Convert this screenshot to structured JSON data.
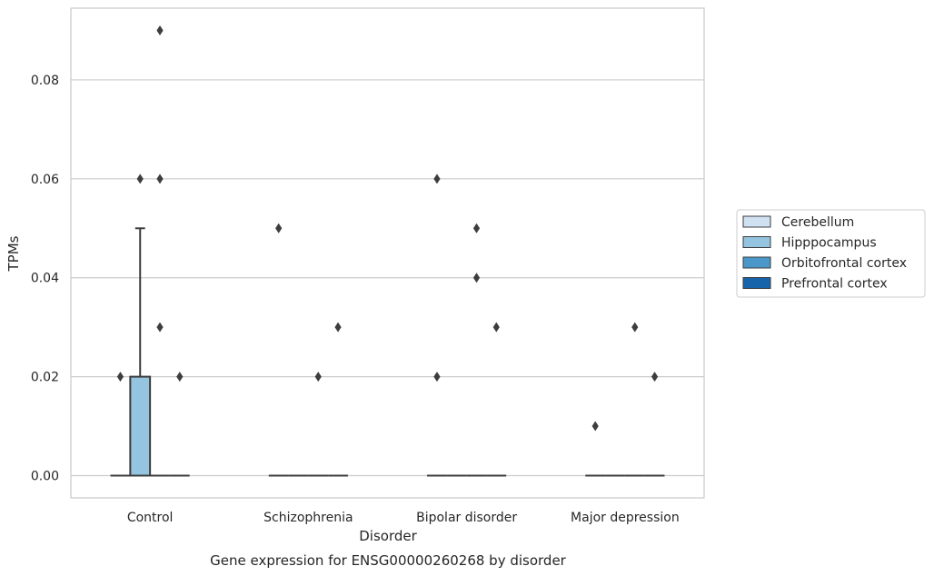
{
  "caption": "Gene expression for ENSG00000260268 by disorder",
  "chart_data": {
    "type": "box",
    "xlabel": "Disorder",
    "ylabel": "TPMs",
    "categories": [
      "Control",
      "Schizophrenia",
      "Bipolar disorder",
      "Major depression"
    ],
    "ylim": [
      -0.0045,
      0.0945
    ],
    "yticks": [
      "0.00",
      "0.02",
      "0.04",
      "0.06",
      "0.08"
    ],
    "ytick_values": [
      0,
      0.02,
      0.04,
      0.06,
      0.08
    ],
    "grid": true,
    "legend_position": "right-outside",
    "series": [
      {
        "name": "Cerebellum",
        "color": "#d0e1f2",
        "boxes": [
          {
            "q1": 0,
            "median": 0,
            "q3": 0,
            "whisker_low": 0,
            "whisker_high": 0,
            "outliers": [
              0.02
            ]
          },
          {
            "q1": 0,
            "median": 0,
            "q3": 0,
            "whisker_low": 0,
            "whisker_high": 0,
            "outliers": [
              0.05
            ]
          },
          {
            "q1": 0,
            "median": 0,
            "q3": 0,
            "whisker_low": 0,
            "whisker_high": 0,
            "outliers": [
              0.02,
              0.06
            ]
          },
          {
            "q1": 0,
            "median": 0,
            "q3": 0,
            "whisker_low": 0,
            "whisker_high": 0,
            "outliers": [
              0.01
            ]
          }
        ]
      },
      {
        "name": "Hipppocampus",
        "color": "#94c4df",
        "boxes": [
          {
            "q1": 0,
            "median": 0,
            "q3": 0.02,
            "whisker_low": 0,
            "whisker_high": 0.05,
            "outliers": [
              0.06
            ]
          },
          {
            "q1": 0,
            "median": 0,
            "q3": 0,
            "whisker_low": 0,
            "whisker_high": 0,
            "outliers": []
          },
          {
            "q1": 0,
            "median": 0,
            "q3": 0,
            "whisker_low": 0,
            "whisker_high": 0,
            "outliers": []
          },
          {
            "q1": 0,
            "median": 0,
            "q3": 0,
            "whisker_low": 0,
            "whisker_high": 0,
            "outliers": []
          }
        ]
      },
      {
        "name": "Orbitofrontal cortex",
        "color": "#4a98c9",
        "boxes": [
          {
            "q1": 0,
            "median": 0,
            "q3": 0,
            "whisker_low": 0,
            "whisker_high": 0,
            "outliers": [
              0.03,
              0.06,
              0.09
            ]
          },
          {
            "q1": 0,
            "median": 0,
            "q3": 0,
            "whisker_low": 0,
            "whisker_high": 0,
            "outliers": [
              0.02
            ]
          },
          {
            "q1": 0,
            "median": 0,
            "q3": 0,
            "whisker_low": 0,
            "whisker_high": 0,
            "outliers": [
              0.04,
              0.05
            ]
          },
          {
            "q1": 0,
            "median": 0,
            "q3": 0,
            "whisker_low": 0,
            "whisker_high": 0,
            "outliers": [
              0.03
            ]
          }
        ]
      },
      {
        "name": "Prefrontal cortex",
        "color": "#1764ab",
        "boxes": [
          {
            "q1": 0,
            "median": 0,
            "q3": 0,
            "whisker_low": 0,
            "whisker_high": 0,
            "outliers": [
              0.02
            ]
          },
          {
            "q1": 0,
            "median": 0,
            "q3": 0,
            "whisker_low": 0,
            "whisker_high": 0,
            "outliers": [
              0.03
            ]
          },
          {
            "q1": 0,
            "median": 0,
            "q3": 0,
            "whisker_low": 0,
            "whisker_high": 0,
            "outliers": [
              0.03
            ]
          },
          {
            "q1": 0,
            "median": 0,
            "q3": 0,
            "whisker_low": 0,
            "whisker_high": 0,
            "outliers": [
              0.02
            ]
          }
        ]
      }
    ]
  }
}
